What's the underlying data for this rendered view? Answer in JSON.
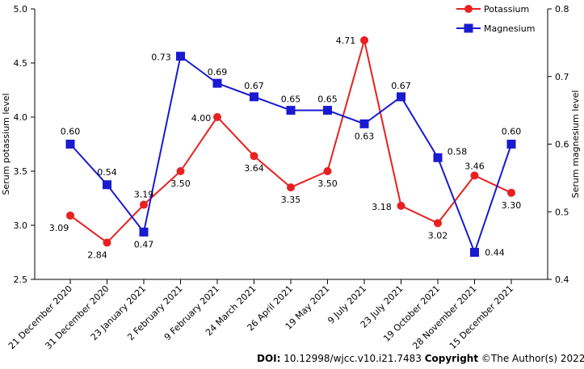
{
  "chart_data": {
    "type": "line",
    "categories": [
      "21 December 2020",
      "31 December 2020",
      "23 January 2021",
      "2 February 2021",
      "9 February 2021",
      "24 March 2021",
      "26 April 2021",
      "19 May 2021",
      "9 July 2021",
      "23 July 2021",
      "19 October 2021",
      "28 November 2021",
      "15 December 2021"
    ],
    "series": [
      {
        "name": "Potassium",
        "axis": "left",
        "color": "#e82020",
        "marker": "circle",
        "values": [
          3.09,
          2.84,
          3.19,
          3.5,
          4.0,
          3.64,
          3.35,
          3.5,
          4.71,
          3.18,
          3.02,
          3.46,
          3.3
        ],
        "labels": [
          "3.09",
          "2.84",
          "3.19",
          "3.50",
          "4.00",
          "3.64",
          "3.35",
          "3.50",
          "4.71",
          "3.18",
          "3.02",
          "3.46",
          "3.30"
        ]
      },
      {
        "name": "Magnesium",
        "axis": "right",
        "color": "#1a1ad0",
        "marker": "square",
        "values": [
          0.6,
          0.54,
          0.47,
          0.73,
          0.69,
          0.67,
          0.65,
          0.65,
          0.63,
          0.67,
          0.58,
          0.44,
          0.6
        ],
        "labels": [
          "0.60",
          "0.54",
          "0.47",
          "0.73",
          "0.69",
          "0.67",
          "0.65",
          "0.65",
          "0.63",
          "0.67",
          "0.58",
          "0.44",
          "0.60"
        ]
      }
    ],
    "ylabel": "Serum potassium level",
    "y2label": "Serum magnesium level",
    "ylim": [
      2.5,
      5.0
    ],
    "y2lim": [
      0.4,
      0.8
    ],
    "yticks": [
      "2.5",
      "3.0",
      "3.5",
      "4.0",
      "4.5",
      "5.0"
    ],
    "y2ticks": [
      "0.4",
      "0.5",
      "0.6",
      "0.7",
      "0.8"
    ],
    "legend_position": "top-right",
    "grid": false
  },
  "footer": {
    "doi_label": "DOI:",
    "doi_value": "10.12998/wjcc.v10.i21.7483",
    "copyright_label": "Copyright",
    "copyright_value": "©The Author(s) 2022."
  }
}
